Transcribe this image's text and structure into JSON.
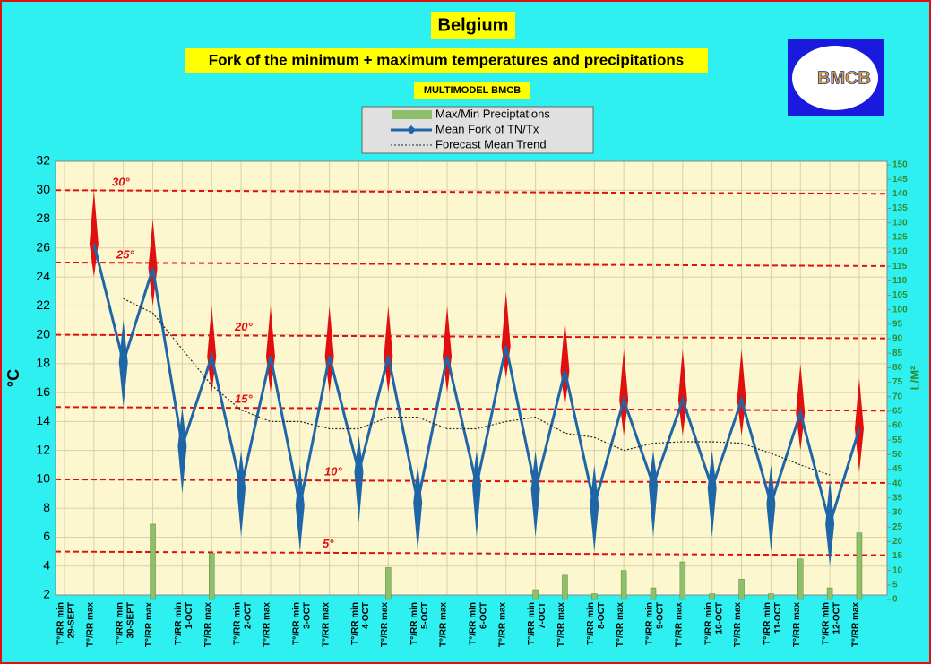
{
  "chart_data": {
    "type": "fork",
    "title": "Belgium",
    "subtitle": "Fork of the minimum + maximum temperatures and precipitations",
    "source": "MULTIMODEL BMCB",
    "logo": "BMCB",
    "y_label": "°C",
    "y2_label": "L/M²",
    "categories": [
      "T°/RR min",
      "T°/RR max",
      "T°/RR min",
      "T°/RR max",
      "T°/RR min",
      "T°/RR max",
      "T°/RR min",
      "T°/RR max",
      "T°/RR min",
      "T°/RR max",
      "T°/RR min",
      "T°/RR max",
      "T°/RR min",
      "T°/RR max",
      "T°/RR min",
      "T°/RR max",
      "T°/RR min",
      "T°/RR max",
      "T°/RR min",
      "T°/RR max",
      "T°/RR min",
      "T°/RR max",
      "T°/RR min",
      "T°/RR max",
      "T°/RR min",
      "T°/RR max",
      "T°/RR min",
      "T°/RR max"
    ],
    "dates": [
      "29-SEPT",
      "30-SEPT",
      "1-OCT",
      "2-OCT",
      "3-OCT",
      "4-OCT",
      "5-OCT",
      "6-OCT",
      "7-OCT",
      "8-OCT",
      "9-OCT",
      "10-OCT",
      "11-OCT",
      "12-OCT"
    ],
    "series": [
      {
        "name": "Max/Min Preciptations",
        "color": "#8fbf6a",
        "axis": "y2",
        "values": [
          null,
          null,
          null,
          26,
          null,
          16,
          null,
          null,
          null,
          null,
          null,
          11,
          null,
          null,
          null,
          null,
          3.4,
          8.4,
          2,
          10,
          4,
          13,
          2,
          7,
          2,
          14,
          4,
          23
        ]
      },
      {
        "name": "Mean Fork of TN/Tx",
        "color": "#1f66a8",
        "values": [
          null,
          26.3,
          18.1,
          24.6,
          12.3,
          18.5,
          9.4,
          18.5,
          8.2,
          18.5,
          10.5,
          18.5,
          8.4,
          18.5,
          9.6,
          19.2,
          9.3,
          17.5,
          8.2,
          15.5,
          9.6,
          15.5,
          9.4,
          15.5,
          8.3,
          14.6,
          6.9,
          13.5
        ]
      },
      {
        "name": "Forecast Mean Trend",
        "color": "#222222",
        "values": [
          null,
          null,
          22.5,
          21.5,
          19,
          16.5,
          14.8,
          14,
          14,
          13.5,
          13.5,
          14.3,
          14.3,
          13.5,
          13.5,
          14,
          14.3,
          13.2,
          12.9,
          12,
          12.5,
          12.6,
          12.6,
          12.5,
          11.8,
          11,
          10.3,
          null
        ]
      }
    ],
    "fork_low": [
      null,
      24,
      15,
      22,
      9,
      16,
      6,
      16,
      5,
      16,
      7,
      16,
      5,
      16,
      6,
      17,
      6,
      15,
      5,
      13,
      6,
      13,
      6,
      13,
      5,
      12,
      4,
      10.5
    ],
    "fork_high": [
      null,
      30,
      21,
      28,
      15,
      22,
      12,
      22,
      11,
      22,
      13,
      22,
      11,
      22,
      12,
      23,
      12,
      21,
      11,
      19,
      12,
      19,
      12,
      19,
      11,
      18,
      10,
      17
    ],
    "fork_colors": {
      "min": "#1f66a8",
      "max": "#e01010"
    },
    "references": [
      {
        "value": 30,
        "label": "30°"
      },
      {
        "value": 25,
        "label": "25°"
      },
      {
        "value": 20,
        "label": "20°"
      },
      {
        "value": 15,
        "label": "15°"
      },
      {
        "value": 10,
        "label": "10°"
      },
      {
        "value": 5,
        "label": "5°"
      }
    ],
    "ylim": [
      2,
      32
    ],
    "yticks": [
      2,
      4,
      6,
      8,
      10,
      12,
      14,
      16,
      18,
      20,
      22,
      24,
      26,
      28,
      30,
      32
    ],
    "y2lim": [
      0,
      150
    ],
    "y2ticks": [
      0,
      5,
      10,
      15,
      20,
      25,
      30,
      35,
      40,
      45,
      50,
      55,
      60,
      65,
      70,
      75,
      80,
      85,
      90,
      95,
      100,
      105,
      110,
      115,
      120,
      125,
      130,
      135,
      140,
      145,
      150
    ],
    "grid": true
  }
}
